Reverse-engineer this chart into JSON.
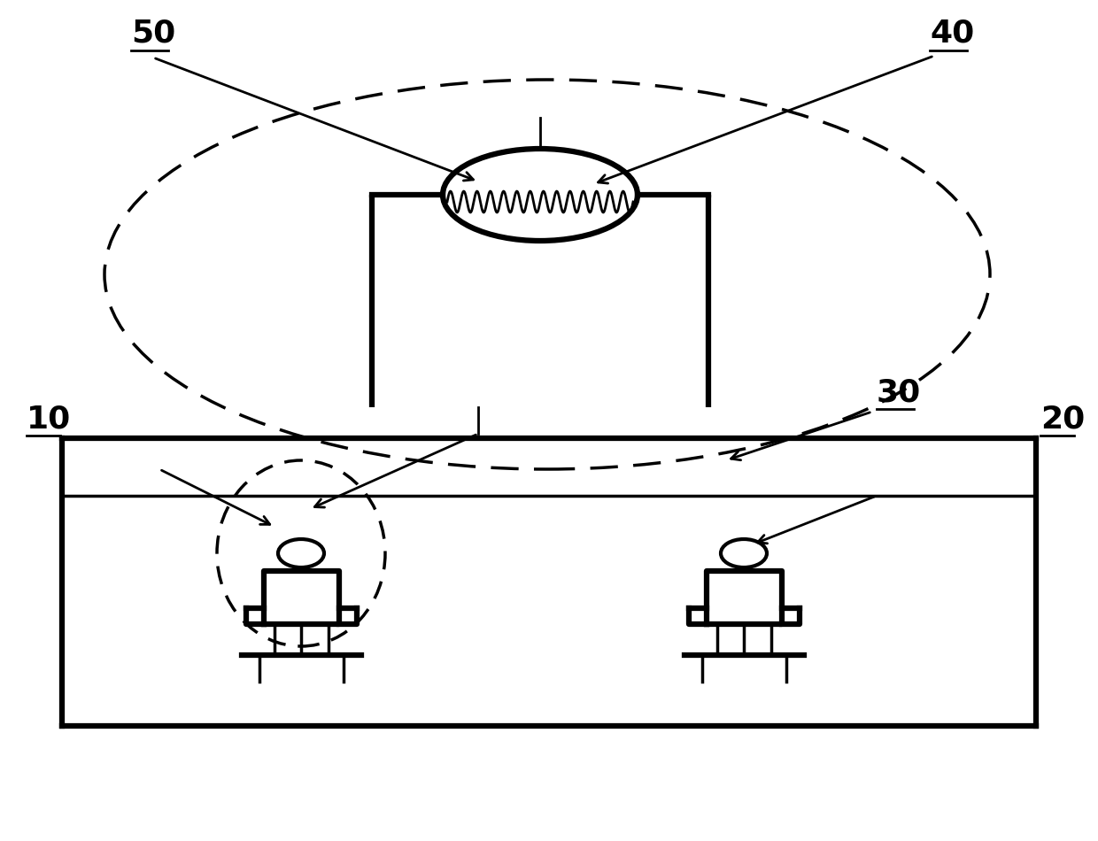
{
  "bg_color": "#ffffff",
  "line_color": "#000000",
  "label_50": "50",
  "label_40": "40",
  "label_30": "30",
  "label_20": "20",
  "label_10": "10",
  "font_size_labels": 26,
  "lw_thick": 4.5,
  "lw_med": 2.5,
  "lw_thin": 2.0,
  "lw_dashed": 2.5
}
